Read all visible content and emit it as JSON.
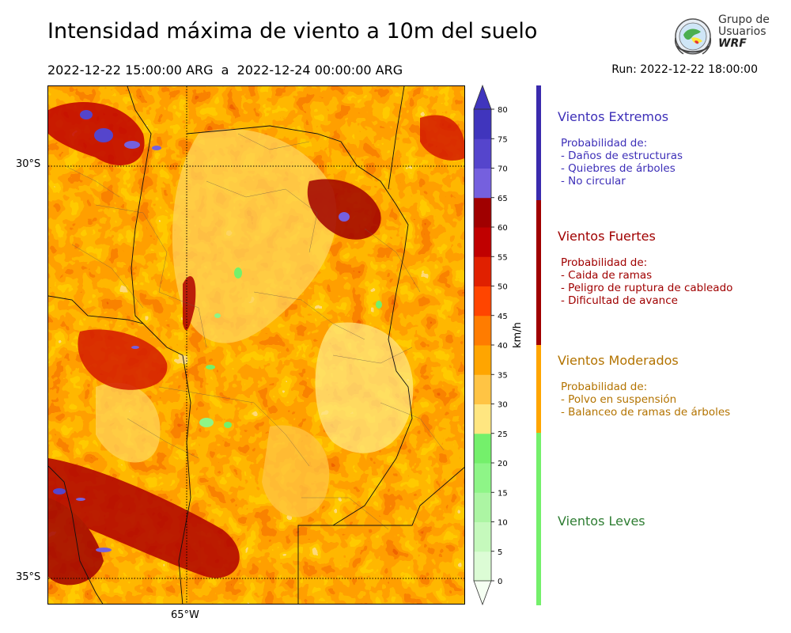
{
  "header": {
    "title": "Intensidad máxima de viento a 10m del suelo",
    "period": "2022-12-22 15:00:00 ARG  a  2022-12-24 00:00:00 ARG",
    "run": "Run: 2022-12-22 18:00:00"
  },
  "logo": {
    "line1": "Grupo de",
    "line2": "Usuarios",
    "line3": "WRF",
    "icon": "wrf-globe-seal-icon"
  },
  "map": {
    "lat_labels": [
      "30°S",
      "35°S"
    ],
    "lon_labels": [
      "65°W"
    ],
    "colors": {
      "calm": "#f0fff0",
      "light": "#7df57a",
      "moderate": "#ffa200",
      "strong": "#c00000",
      "extreme": "#3d2fb8"
    }
  },
  "colorbar": {
    "unit": "km/h",
    "ticks": [
      "0",
      "5",
      "10",
      "15",
      "20",
      "25",
      "30",
      "35",
      "40",
      "45",
      "50",
      "55",
      "60",
      "65",
      "70",
      "75",
      "80"
    ],
    "colors": [
      "#f5fff2",
      "#dcfcd5",
      "#c5f9bc",
      "#acf5a3",
      "#8ef587",
      "#74f06b",
      "#ffe680",
      "#ffc444",
      "#ffa500",
      "#ff7c00",
      "#ff4500",
      "#e02000",
      "#c00000",
      "#a00000",
      "#7560de",
      "#5545cc",
      "#4035bd"
    ]
  },
  "categories": [
    {
      "title": "Vientos Extremos",
      "color": "#3d2fb8",
      "bar_color": "#3a2aad",
      "lines": [
        "Probabilidad de:",
        "- Daños de estructuras",
        "- Quiebres de árboles",
        "- No circular"
      ]
    },
    {
      "title": "Vientos Fuertes",
      "color": "#a00000",
      "bar_color": "#a00000",
      "lines": [
        "Probabilidad de:",
        "- Caida de ramas",
        "- Peligro de ruptura de cableado",
        "- Dificultad de avance"
      ]
    },
    {
      "title": "Vientos Moderados",
      "color": "#b37300",
      "bar_color": "#ffa500",
      "lines": [
        "Probabilidad de:",
        "- Polvo en suspensión",
        "- Balanceo de ramas de árboles"
      ]
    },
    {
      "title": "Vientos Leves",
      "color": "#2e7d32",
      "bar_color": "#74f06b",
      "lines": []
    }
  ]
}
